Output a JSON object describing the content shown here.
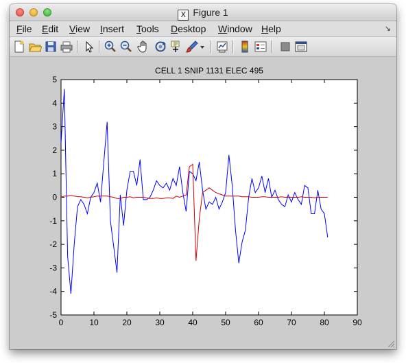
{
  "window": {
    "title": "Figure 1",
    "x11_glyph": "X"
  },
  "menubar": {
    "items": [
      {
        "first": "F",
        "rest": "ile"
      },
      {
        "first": "E",
        "rest": "dit"
      },
      {
        "first": "V",
        "rest": "iew"
      },
      {
        "first": "I",
        "rest": "nsert"
      },
      {
        "first": "T",
        "rest": "ools"
      },
      {
        "first": "D",
        "rest": "esktop"
      },
      {
        "first": "W",
        "rest": "indow"
      },
      {
        "first": "H",
        "rest": "elp"
      }
    ],
    "dock_glyph": "↘"
  },
  "toolbar": {
    "tools": [
      "new-figure-icon",
      "open-file-icon",
      "save-icon",
      "print-icon",
      "edit-plot-arrow-icon",
      "zoom-in-icon",
      "zoom-out-icon",
      "pan-hand-icon",
      "rotate-3d-icon",
      "data-cursor-icon",
      "brush-icon",
      "brush-dropdown-icon",
      "link-plot-icon",
      "colorbar-icon",
      "legend-icon",
      "hide-plot-tools-icon",
      "show-plot-tools-icon"
    ]
  },
  "colors": {
    "series_blue": "#0000ff",
    "series_red": "#cc0000",
    "axes_bg": "#ffffff",
    "figure_bg": "#cccccc"
  },
  "chart_data": {
    "type": "line",
    "title": "CELL 1 SNIP 1131 ELEC 495",
    "xlim": [
      0,
      90
    ],
    "ylim": [
      -5,
      5
    ],
    "xticks": [
      0,
      10,
      20,
      30,
      40,
      50,
      60,
      70,
      80,
      90
    ],
    "yticks": [
      -5,
      -4,
      -3,
      -2,
      -1,
      0,
      1,
      2,
      3,
      4,
      5
    ],
    "grid": false,
    "series": [
      {
        "color": "#0000ff",
        "x": [
          0,
          1,
          2,
          3,
          4,
          5,
          6,
          7,
          8,
          9,
          10,
          11,
          12,
          13,
          14,
          15,
          16,
          17,
          18,
          19,
          20,
          21,
          22,
          23,
          24,
          25,
          26,
          27,
          28,
          29,
          30,
          31,
          32,
          33,
          34,
          35,
          36,
          37,
          38,
          39,
          40,
          41,
          42,
          43,
          44,
          45,
          46,
          47,
          48,
          49,
          50,
          51,
          52,
          53,
          54,
          55,
          56,
          57,
          58,
          59,
          60,
          61,
          62,
          63,
          64,
          65,
          66,
          67,
          68,
          69,
          70,
          71,
          72,
          73,
          74,
          75,
          76,
          77,
          78,
          79,
          80,
          81
        ],
        "y": [
          2.3,
          4.6,
          -2.5,
          -4.1,
          -2.0,
          -0.4,
          -0.1,
          -0.3,
          -0.7,
          0.0,
          0.2,
          0.6,
          -0.2,
          1.5,
          3.2,
          -1.0,
          -2.1,
          -3.2,
          0.1,
          -1.2,
          0.3,
          1.1,
          1.1,
          0.5,
          1.6,
          -0.1,
          -0.1,
          0.0,
          0.3,
          0.7,
          0.5,
          0.4,
          0.6,
          0.3,
          0.8,
          0.5,
          1.3,
          0.2,
          -0.6,
          1.1,
          1.0,
          0.7,
          1.5,
          0.3,
          -0.5,
          -0.2,
          -0.3,
          0.0,
          -0.5,
          -0.2,
          0.2,
          1.8,
          0.5,
          -1.4,
          -2.8,
          -1.9,
          -1.4,
          0.0,
          0.8,
          0.2,
          0.4,
          0.9,
          0.2,
          0.8,
          0.0,
          0.3,
          -0.1,
          -0.3,
          -0.4,
          0.1,
          -0.2,
          0.2,
          -0.1,
          -0.3,
          0.5,
          0.4,
          -0.7,
          -0.7,
          0.3,
          -0.5,
          -0.7,
          -1.7
        ]
      },
      {
        "color": "#cc0000",
        "x": [
          0,
          1,
          2,
          3,
          4,
          5,
          6,
          7,
          8,
          9,
          10,
          11,
          12,
          13,
          14,
          15,
          16,
          17,
          18,
          19,
          20,
          21,
          22,
          23,
          24,
          25,
          26,
          27,
          28,
          29,
          30,
          31,
          32,
          33,
          34,
          35,
          36,
          37,
          38,
          39,
          40,
          41,
          42,
          43,
          44,
          45,
          46,
          47,
          48,
          49,
          50,
          51,
          52,
          53,
          54,
          55,
          56,
          57,
          58,
          59,
          60,
          61,
          62,
          63,
          64,
          65,
          66,
          67,
          68,
          69,
          70,
          71,
          72,
          73,
          74,
          75,
          76,
          77,
          78,
          79,
          80,
          81
        ],
        "y": [
          0.0,
          0.05,
          0.05,
          0.08,
          0.05,
          0.03,
          0.02,
          0.0,
          -0.02,
          0.0,
          0.02,
          0.05,
          0.05,
          0.05,
          0.05,
          0.02,
          0.0,
          -0.05,
          -0.05,
          0.0,
          0.0,
          0.02,
          -0.02,
          0.0,
          0.0,
          0.0,
          -0.02,
          -0.05,
          -0.05,
          -0.02,
          -0.05,
          -0.05,
          -0.02,
          -0.02,
          -0.05,
          0.05,
          0.0,
          0.05,
          0.1,
          1.3,
          1.4,
          -2.7,
          -0.9,
          0.2,
          0.3,
          0.4,
          0.3,
          0.2,
          0.15,
          0.1,
          0.05,
          0.05,
          0.05,
          0.05,
          0.05,
          0.02,
          0.02,
          0.02,
          0.0,
          0.0,
          0.0,
          0.02,
          0.02,
          0.0,
          0.0,
          0.0,
          0.0,
          0.02,
          0.0,
          0.0,
          0.0,
          0.0,
          0.0,
          0.02,
          0.0,
          0.0,
          0.0,
          -0.02,
          0.0,
          0.0,
          0.0,
          0.0
        ]
      }
    ]
  }
}
